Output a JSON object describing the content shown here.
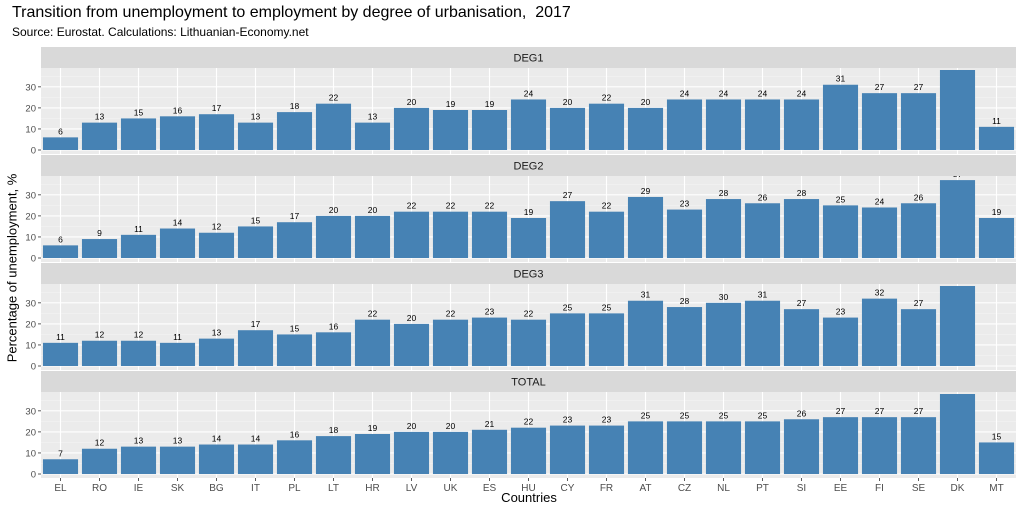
{
  "chart_data": {
    "type": "bar",
    "title": "Transition from unemployment to employment by degree of urbanisation,  2017",
    "subtitle": "Source: Eurostat. Calculations: Lithuanian-Economy.net",
    "xlabel": "Countries",
    "ylabel": "Percentage of unemployment, %",
    "categories": [
      "EL",
      "RO",
      "IE",
      "SK",
      "BG",
      "IT",
      "PL",
      "LT",
      "HR",
      "LV",
      "UK",
      "ES",
      "HU",
      "CY",
      "FR",
      "AT",
      "CZ",
      "NL",
      "PT",
      "SI",
      "EE",
      "FI",
      "SE",
      "DK",
      "MT"
    ],
    "ylim": [
      0,
      38
    ],
    "yticks": [
      0,
      10,
      20,
      30
    ],
    "grid": true,
    "bar_color": "#4682B4",
    "panels": [
      {
        "name": "DEG1",
        "values": [
          6,
          13,
          15,
          16,
          17,
          13,
          18,
          22,
          13,
          20,
          19,
          19,
          24,
          20,
          22,
          20,
          24,
          24,
          24,
          24,
          31,
          27,
          27,
          38,
          11
        ]
      },
      {
        "name": "DEG2",
        "values": [
          6,
          9,
          11,
          14,
          12,
          15,
          17,
          20,
          20,
          22,
          22,
          22,
          19,
          27,
          22,
          29,
          23,
          28,
          26,
          28,
          25,
          24,
          26,
          37,
          19
        ]
      },
      {
        "name": "DEG3",
        "values": [
          11,
          12,
          12,
          11,
          13,
          17,
          15,
          16,
          22,
          20,
          22,
          23,
          22,
          25,
          25,
          31,
          28,
          30,
          31,
          27,
          23,
          32,
          27,
          38,
          null
        ]
      },
      {
        "name": "TOTAL",
        "values": [
          7,
          12,
          13,
          13,
          14,
          14,
          16,
          18,
          19,
          20,
          20,
          21,
          22,
          23,
          23,
          25,
          25,
          25,
          25,
          26,
          27,
          27,
          27,
          38,
          15
        ]
      }
    ]
  }
}
